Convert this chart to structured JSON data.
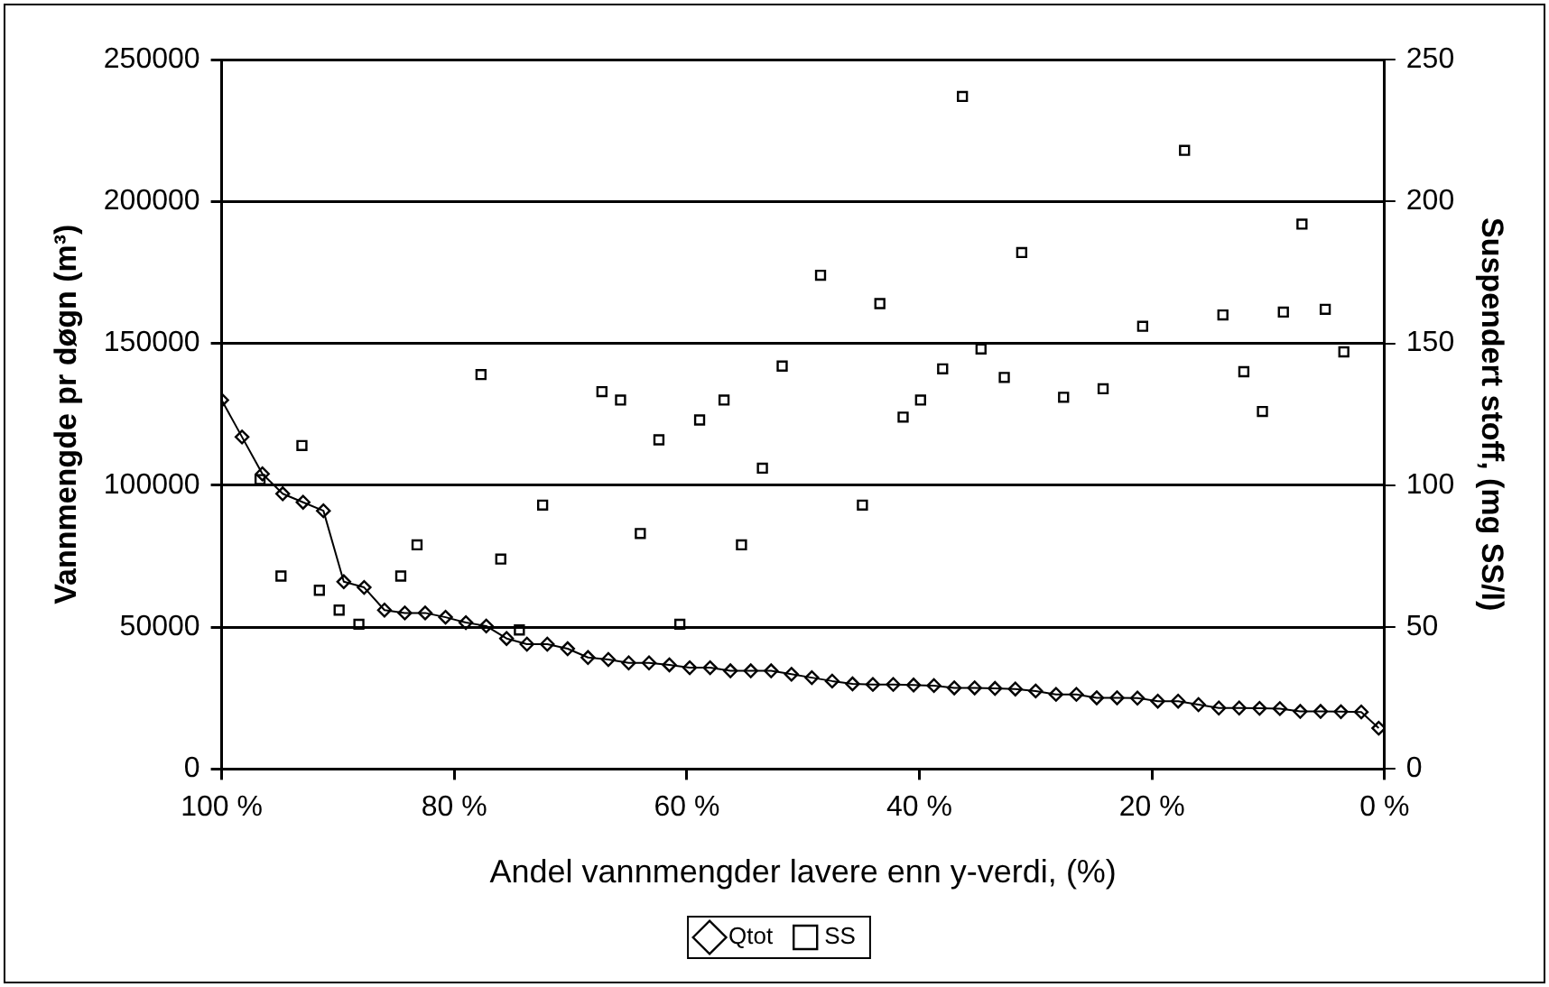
{
  "chart_data": {
    "type": "line",
    "xlabel": "Andel vannmengder lavere enn y-verdi, (%)",
    "ylabel": "Vannmengde pr døgn (m³)",
    "y2label": "Suspendert stoff, (mg SS/l)",
    "xlim": [
      100,
      0
    ],
    "xticks": [
      {
        "value": 100,
        "label": "100 %"
      },
      {
        "value": 80,
        "label": "80 %"
      },
      {
        "value": 60,
        "label": "60 %"
      },
      {
        "value": 40,
        "label": "40 %"
      },
      {
        "value": 20,
        "label": "20 %"
      },
      {
        "value": 0,
        "label": "0 %"
      }
    ],
    "ylim": [
      0,
      250000
    ],
    "yticks": [
      0,
      50000,
      100000,
      150000,
      200000,
      250000
    ],
    "y2lim": [
      0,
      250
    ],
    "y2ticks": [
      0,
      50,
      100,
      150,
      200,
      250
    ],
    "grid": "y",
    "legend": "bottom",
    "series": [
      {
        "name": "Qtot",
        "color": "#000000",
        "marker": "diamond",
        "line_style": "solid",
        "x": [
          100,
          98.25,
          96.5,
          94.75,
          93,
          91.25,
          89.5,
          87.75,
          86,
          84.25,
          82.5,
          80.75,
          79,
          77.25,
          75.5,
          73.75,
          72,
          70.25,
          68.5,
          66.75,
          65,
          63.25,
          61.5,
          59.75,
          58,
          56.25,
          54.5,
          52.75,
          51,
          49.25,
          47.5,
          45.75,
          44,
          42.25,
          40.5,
          38.75,
          37,
          35.25,
          33.5,
          31.75,
          30,
          28.25,
          26.5,
          24.75,
          23,
          21.25,
          19.5,
          17.75,
          16,
          14.25,
          12.5,
          10.75,
          9,
          7.25,
          5.5,
          3.75,
          2,
          0.5
        ],
        "values": [
          130000,
          117000,
          104000,
          97000,
          94000,
          91000,
          66000,
          64000,
          56000,
          55000,
          55000,
          53500,
          51600,
          50400,
          46000,
          44000,
          44000,
          42400,
          39300,
          38600,
          37400,
          37400,
          36700,
          35700,
          35700,
          34600,
          34600,
          34600,
          33400,
          32200,
          31000,
          30000,
          29800,
          29800,
          29600,
          29400,
          28600,
          28600,
          28400,
          28200,
          27500,
          26300,
          26300,
          25100,
          25100,
          25000,
          23900,
          23900,
          22700,
          21500,
          21500,
          21400,
          21300,
          20300,
          20300,
          20200,
          20100,
          14400
        ]
      },
      {
        "name": "SS",
        "type": "scatter",
        "axis": "y2",
        "color": "#000000",
        "marker": "square",
        "x": [
          96.7,
          94.9,
          93.1,
          91.6,
          89.9,
          88.2,
          84.6,
          83.2,
          77.7,
          76,
          74.4,
          72.4,
          67.3,
          65.7,
          64,
          62.4,
          60.6,
          58.9,
          56.8,
          55.3,
          53.5,
          51.8,
          48.5,
          44.9,
          43.4,
          41.4,
          39.9,
          38,
          36.3,
          34.7,
          32.7,
          31.2,
          27.6,
          24.2,
          20.8,
          17.2,
          13.9,
          12.1,
          10.5,
          8.7,
          7.1,
          5.1,
          3.5
        ],
        "values": [
          102,
          68,
          114,
          63,
          56,
          51,
          68,
          79,
          139,
          74,
          49,
          93,
          133,
          130,
          83,
          116,
          51,
          123,
          130,
          79,
          106,
          142,
          174,
          93,
          164,
          124,
          130,
          141,
          237,
          148,
          138,
          182,
          131,
          134,
          156,
          218,
          160,
          140,
          126,
          161,
          192,
          162,
          147
        ]
      }
    ]
  }
}
